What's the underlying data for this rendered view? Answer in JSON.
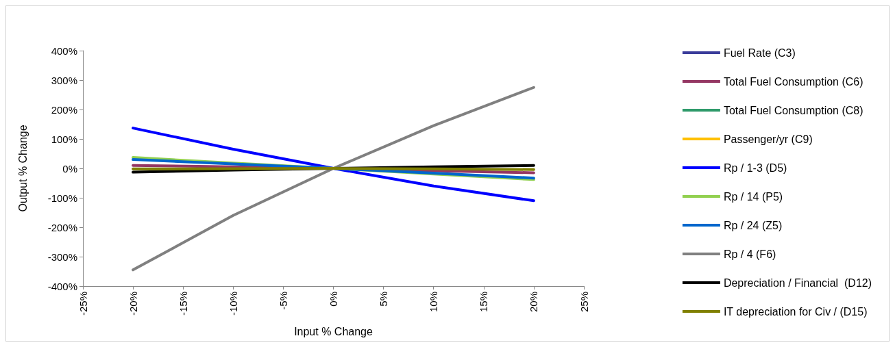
{
  "chart_data": {
    "type": "line",
    "xlabel": "Input % Change",
    "ylabel": "Output % Change",
    "x": [
      -20,
      -10,
      0,
      10,
      20
    ],
    "xlim": [
      -25,
      25
    ],
    "xticks": [
      {
        "value": -25,
        "label": "-25%"
      },
      {
        "value": -20,
        "label": "-20%"
      },
      {
        "value": -15,
        "label": "-15%"
      },
      {
        "value": -10,
        "label": "-10%"
      },
      {
        "value": -5,
        "label": "-5%"
      },
      {
        "value": 0,
        "label": "0%"
      },
      {
        "value": 5,
        "label": "5%"
      },
      {
        "value": 10,
        "label": "10%"
      },
      {
        "value": 15,
        "label": "15%"
      },
      {
        "value": 20,
        "label": "20%"
      },
      {
        "value": 25,
        "label": "25%"
      }
    ],
    "ylim": [
      -400,
      400
    ],
    "yticks": [
      {
        "value": -400,
        "label": "-400%"
      },
      {
        "value": -300,
        "label": "-300%"
      },
      {
        "value": -200,
        "label": "-200%"
      },
      {
        "value": -100,
        "label": "-100%"
      },
      {
        "value": 0,
        "label": "0%"
      },
      {
        "value": 100,
        "label": "100%"
      },
      {
        "value": 200,
        "label": "200%"
      },
      {
        "value": 300,
        "label": "300%"
      },
      {
        "value": 400,
        "label": "400%"
      }
    ],
    "grid": false,
    "legend": "right",
    "marker": "none",
    "line_style": "solid",
    "series": [
      {
        "name": "Fuel Rate (C3)",
        "color": "#3a3c9a",
        "values": [
          null,
          null,
          null,
          null,
          null
        ]
      },
      {
        "name": "Total Fuel Consumption (C6)",
        "color": "#953763",
        "values": [
          10,
          5,
          0,
          -8,
          -15
        ]
      },
      {
        "name": "Total Fuel Consumption (C8)",
        "color": "#2e9a6a",
        "values": [
          null,
          null,
          null,
          null,
          null
        ]
      },
      {
        "name": "Passenger/yr (C9)",
        "color": "#ffc000",
        "values": [
          null,
          null,
          null,
          null,
          null
        ]
      },
      {
        "name": "Rp / 1-3 (D5)",
        "color": "#0000ff",
        "values": [
          137,
          65,
          0,
          -60,
          -110
        ]
      },
      {
        "name": "Rp / 14 (P5)",
        "color": "#92d050",
        "values": [
          37,
          18,
          0,
          -19,
          -38
        ]
      },
      {
        "name": "Rp / 24 (Z5)",
        "color": "#0066cc",
        "values": [
          30,
          15,
          0,
          -16,
          -33
        ]
      },
      {
        "name": "Rp / 4 (F6)",
        "color": "#808080",
        "values": [
          -345,
          -160,
          0,
          145,
          275
        ]
      },
      {
        "name": "Depreciation / Financial  (D12)",
        "color": "#000000",
        "values": [
          -13,
          -6,
          0,
          5,
          10
        ]
      },
      {
        "name": "IT depreciation for Civ / (D15)",
        "color": "#808000",
        "values": [
          -2,
          -1,
          0,
          -2,
          -4
        ]
      }
    ]
  }
}
